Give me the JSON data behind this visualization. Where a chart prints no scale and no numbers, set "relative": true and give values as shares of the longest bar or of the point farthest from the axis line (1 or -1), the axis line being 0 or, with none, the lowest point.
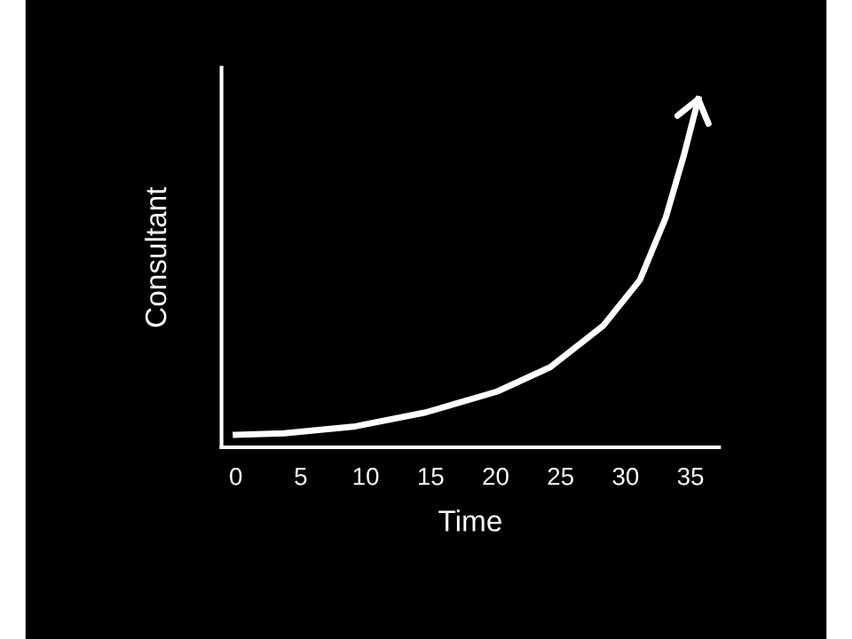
{
  "chart_data": {
    "type": "line",
    "xlabel": "Time",
    "ylabel": "Consultant",
    "relative": true,
    "x": [
      0,
      3.7,
      9.2,
      14.6,
      20.1,
      24.2,
      28.3,
      31.1,
      33.1,
      34.5,
      35.6
    ],
    "series": [
      {
        "color": "#ffffff",
        "values": [
          0.036,
          0.04,
          0.06,
          0.1,
          0.16,
          0.23,
          0.35,
          0.48,
          0.66,
          0.84,
          1.0
        ]
      }
    ],
    "xlim": [
      -1.1,
      37.2
    ],
    "xticks": [
      0,
      5,
      10,
      15,
      20,
      25,
      30,
      35
    ],
    "grid": false,
    "marker": "none",
    "line_style": "solid"
  }
}
